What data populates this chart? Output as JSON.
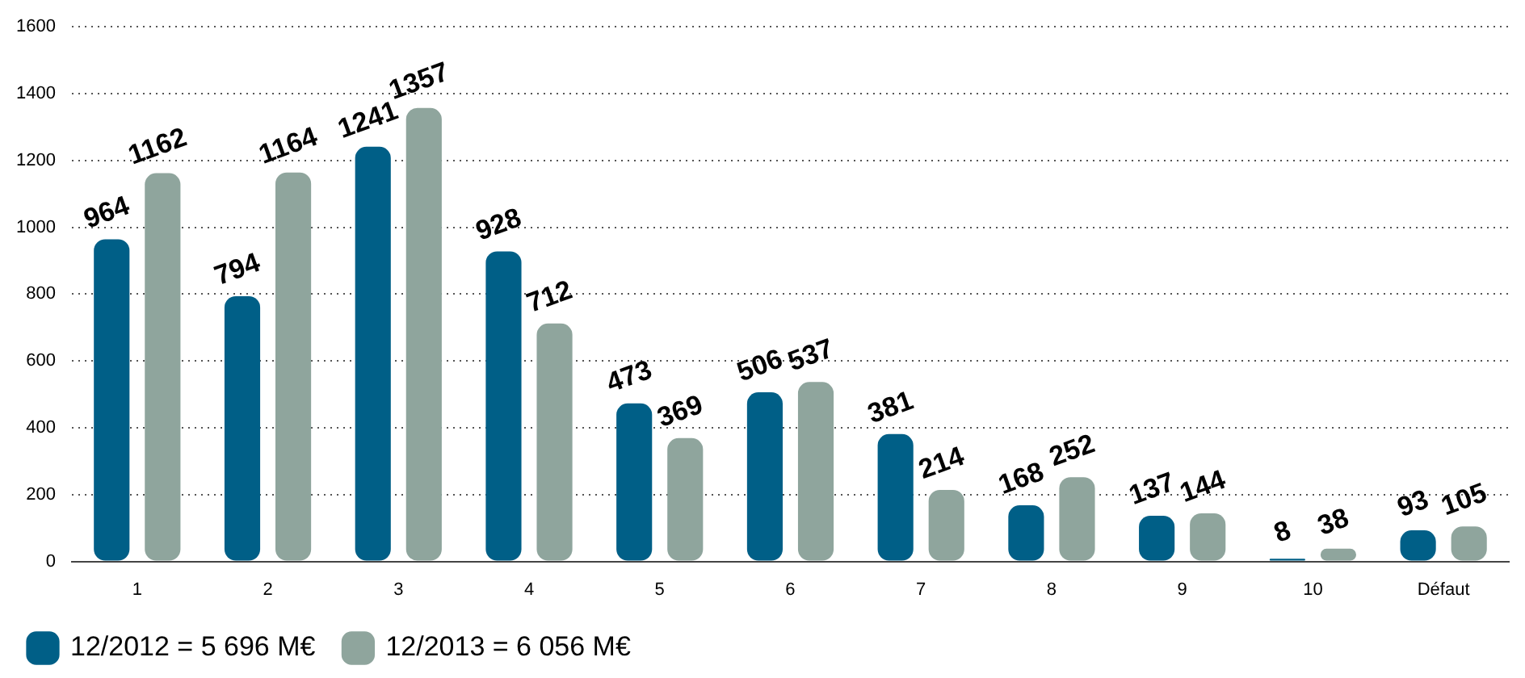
{
  "chart_data": {
    "type": "bar",
    "categories": [
      "1",
      "2",
      "3",
      "4",
      "5",
      "6",
      "7",
      "8",
      "9",
      "10",
      "Défaut"
    ],
    "series": [
      {
        "name": "12/2012 = 5 696 M€",
        "color": "#005f87",
        "values": [
          964,
          794,
          1241,
          928,
          473,
          506,
          381,
          168,
          137,
          8,
          93
        ]
      },
      {
        "name": "12/2013 = 6 056 M€",
        "color": "#8fa59d",
        "values": [
          1162,
          1164,
          1357,
          712,
          369,
          537,
          214,
          252,
          144,
          38,
          105
        ]
      }
    ],
    "ylim": [
      0,
      1600
    ],
    "yticks": [
      0,
      200,
      400,
      600,
      800,
      1000,
      1200,
      1400,
      1600
    ],
    "grid": "y",
    "legend": "bottom left",
    "data_labels": true
  }
}
